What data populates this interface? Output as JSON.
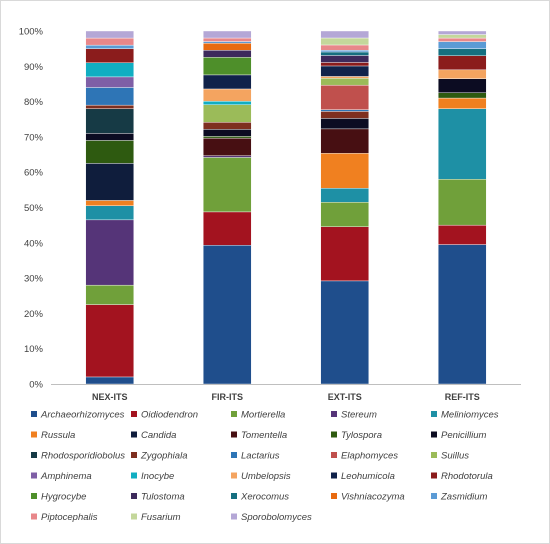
{
  "chart_data": {
    "type": "bar",
    "stacked": true,
    "normalized": true,
    "title": "",
    "xlabel": "",
    "ylabel": "",
    "ylim": [
      0,
      100
    ],
    "yticks": [
      "0%",
      "10%",
      "20%",
      "30%",
      "40%",
      "50%",
      "60%",
      "70%",
      "80%",
      "90%",
      "100%"
    ],
    "grid": false,
    "legend_position": "bottom",
    "categories": [
      "NEX-ITS",
      "FIR-ITS",
      "EXT-ITS",
      "REF-ITS"
    ],
    "series": [
      {
        "name": "Archaeorhizomyces",
        "color": "#1f4e8c",
        "values": [
          2.0,
          39.5,
          29.5,
          39.5
        ]
      },
      {
        "name": "Oidiodendron",
        "color": "#a3131f",
        "values": [
          20.5,
          9.5,
          15.5,
          5.5
        ]
      },
      {
        "name": "Mortierella",
        "color": "#70a03a",
        "values": [
          5.5,
          15.5,
          7.0,
          13.0
        ]
      },
      {
        "name": "Stereum",
        "color": "#553478",
        "values": [
          18.5,
          0.5,
          0.0,
          0.0
        ]
      },
      {
        "name": "Meliniomyces",
        "color": "#1e90a5",
        "values": [
          4.0,
          0.0,
          4.0,
          20.0
        ]
      },
      {
        "name": "Russula",
        "color": "#f08020",
        "values": [
          1.5,
          0.0,
          10.0,
          3.0
        ]
      },
      {
        "name": "Candida",
        "color": "#0f1d3c",
        "values": [
          10.5,
          0.0,
          0.0,
          0.0
        ]
      },
      {
        "name": "Tomentella",
        "color": "#470f12",
        "values": [
          0.0,
          5.0,
          7.0,
          0.0
        ]
      },
      {
        "name": "Tylospora",
        "color": "#2e5a10",
        "values": [
          6.5,
          0.5,
          0.0,
          1.5
        ]
      },
      {
        "name": "Penicillium",
        "color": "#0c0c22",
        "values": [
          2.0,
          2.0,
          3.0,
          4.0
        ]
      },
      {
        "name": "Rhodosporidiobolus",
        "color": "#163a45",
        "values": [
          7.0,
          0.0,
          0.0,
          0.0
        ]
      },
      {
        "name": "Zygophiala",
        "color": "#7e2f20",
        "values": [
          1.0,
          2.0,
          2.0,
          0.0
        ]
      },
      {
        "name": "Lactarius",
        "color": "#2e75b6",
        "values": [
          5.0,
          0.0,
          0.5,
          0.0
        ]
      },
      {
        "name": "Elaphomyces",
        "color": "#c0504d",
        "values": [
          0.0,
          0.0,
          7.0,
          0.0
        ]
      },
      {
        "name": "Suillus",
        "color": "#9bbb59",
        "values": [
          0.0,
          5.0,
          2.0,
          0.0
        ]
      },
      {
        "name": "Amphinema",
        "color": "#7f5fa6",
        "values": [
          3.0,
          0.0,
          0.0,
          0.0
        ]
      },
      {
        "name": "Inocybe",
        "color": "#11aec2",
        "values": [
          4.0,
          1.0,
          0.0,
          0.0
        ]
      },
      {
        "name": "Umbelopsis",
        "color": "#f4a460",
        "values": [
          0.0,
          3.5,
          0.5,
          2.5
        ]
      },
      {
        "name": "Leohumicola",
        "color": "#10224a",
        "values": [
          0.0,
          4.0,
          3.0,
          0.0
        ]
      },
      {
        "name": "Rhodotorula",
        "color": "#8b1c1c",
        "values": [
          4.0,
          0.0,
          1.0,
          4.0
        ]
      },
      {
        "name": "Hygrocybe",
        "color": "#4e8f2a",
        "values": [
          0.0,
          5.0,
          0.0,
          0.0
        ]
      },
      {
        "name": "Tulostoma",
        "color": "#3d2a5c",
        "values": [
          0.0,
          2.0,
          2.0,
          0.0
        ]
      },
      {
        "name": "Xerocomus",
        "color": "#156f80",
        "values": [
          0.0,
          0.0,
          1.0,
          2.0
        ]
      },
      {
        "name": "Vishniacozyma",
        "color": "#e86a10",
        "values": [
          0.0,
          2.0,
          0.0,
          0.0
        ]
      },
      {
        "name": "Zasmidium",
        "color": "#5b9bd5",
        "values": [
          1.0,
          0.5,
          0.5,
          2.0
        ]
      },
      {
        "name": "Piptocephalis",
        "color": "#e8878a",
        "values": [
          2.0,
          1.0,
          1.5,
          1.0
        ]
      },
      {
        "name": "Fusarium",
        "color": "#c4d79b",
        "values": [
          0.0,
          0.0,
          2.0,
          1.0
        ]
      },
      {
        "name": "Sporobolomyces",
        "color": "#b4a7d6",
        "values": [
          2.0,
          2.0,
          2.0,
          1.0
        ]
      }
    ]
  }
}
